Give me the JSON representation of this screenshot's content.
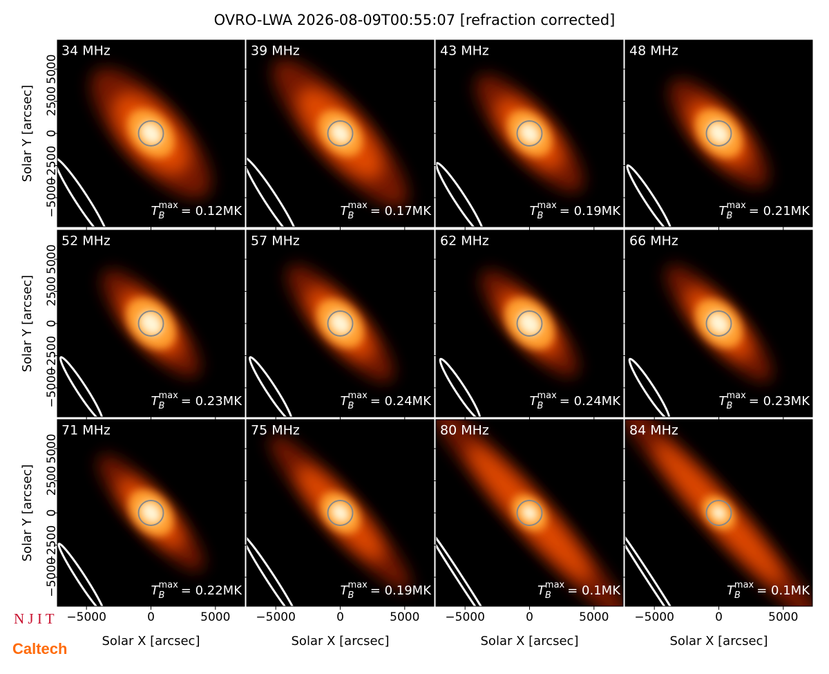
{
  "title": "OVRO-LWA 2026-08-09T00:55:07 [refraction corrected]",
  "xlabel": "Solar X [arcsec]",
  "ylabel": "Solar Y [arcsec]",
  "xlim": [
    -7260,
    7260
  ],
  "ylim": [
    -7260,
    7260
  ],
  "xticks": [
    {
      "value": -5000,
      "label": "−5000"
    },
    0,
    5000
  ],
  "yticks": [
    {
      "value": -5000,
      "label": "−5000"
    },
    {
      "value": -2500,
      "label": "−2500"
    },
    0,
    2500,
    5000
  ],
  "tb_symbol": "T",
  "tb_sub": "B",
  "tb_sup": "max",
  "logos": [
    "N J I T",
    "Caltech"
  ],
  "chart_data": [
    {
      "type": "image",
      "label": "34 MHz",
      "tmax": "= 0.12MK"
    },
    {
      "type": "image",
      "label": "39 MHz",
      "tmax": "= 0.17MK"
    },
    {
      "type": "image",
      "label": "43 MHz",
      "tmax": "= 0.19MK"
    },
    {
      "type": "image",
      "label": "48 MHz",
      "tmax": "= 0.21MK"
    },
    {
      "type": "image",
      "label": "52 MHz",
      "tmax": "= 0.23MK"
    },
    {
      "type": "image",
      "label": "57 MHz",
      "tmax": "= 0.24MK"
    },
    {
      "type": "image",
      "label": "62 MHz",
      "tmax": "= 0.24MK"
    },
    {
      "type": "image",
      "label": "66 MHz",
      "tmax": "= 0.23MK"
    },
    {
      "type": "image",
      "label": "71 MHz",
      "tmax": "= 0.22MK"
    },
    {
      "type": "image",
      "label": "75 MHz",
      "tmax": "= 0.19MK"
    },
    {
      "type": "image",
      "label": "80 MHz",
      "tmax": "= 0.1MK"
    },
    {
      "type": "image",
      "label": "84 MHz",
      "tmax": "= 0.1MK"
    }
  ]
}
